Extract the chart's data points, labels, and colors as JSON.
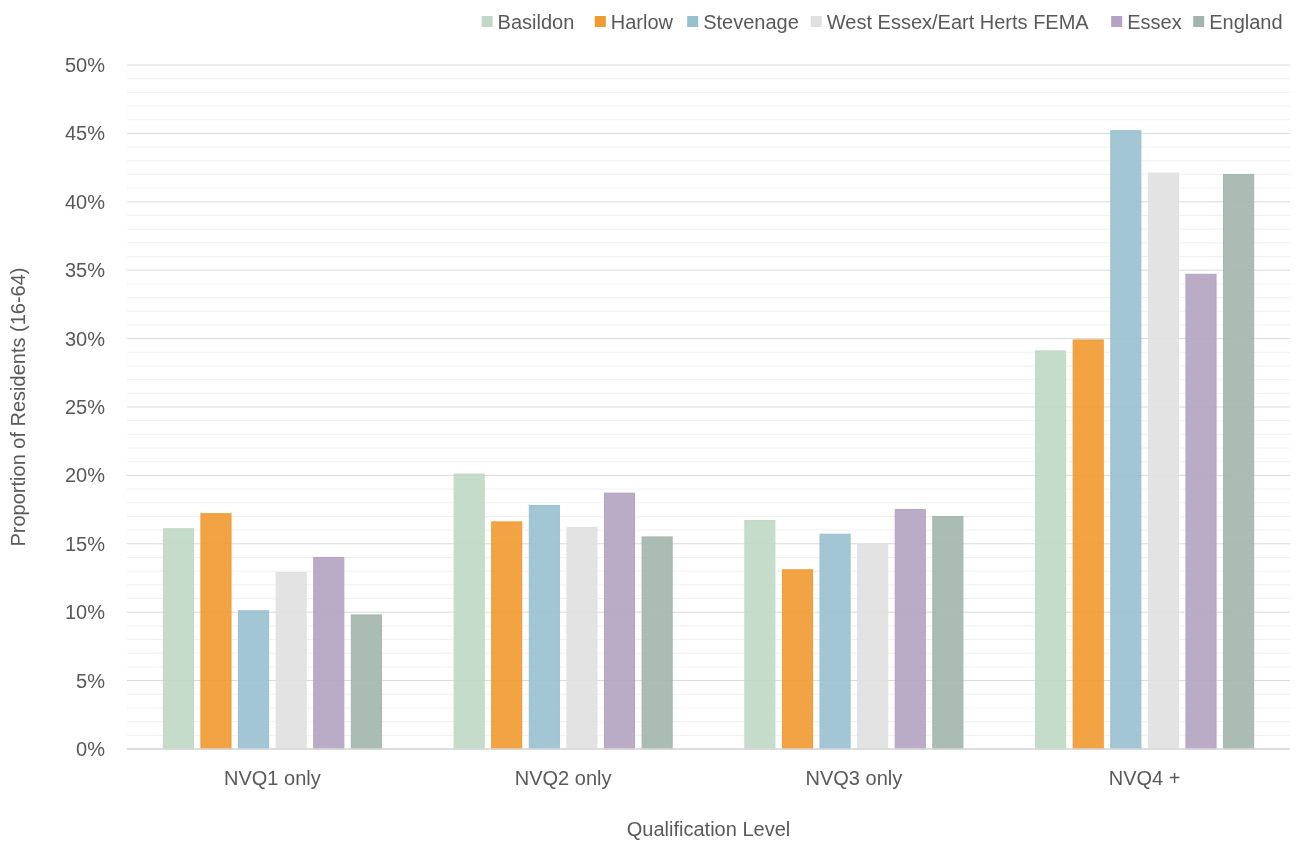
{
  "chart_data": {
    "type": "bar",
    "xlabel": "Qualification Level",
    "ylabel": "Proportion of Residents (16-64)",
    "categories": [
      "NVQ1 only",
      "NVQ2 only",
      "NVQ3 only",
      "NVQ4 +"
    ],
    "series": [
      {
        "name": "Basildon",
        "color": "#c0d8c4",
        "values": [
          16.1,
          20.1,
          16.7,
          29.1
        ]
      },
      {
        "name": "Harlow",
        "color": "#f19a30",
        "values": [
          17.2,
          16.6,
          13.1,
          29.9
        ]
      },
      {
        "name": "Stevenage",
        "color": "#98c0cf",
        "values": [
          10.1,
          17.8,
          15.7,
          45.2
        ]
      },
      {
        "name": "West Essex/Eart Herts FEMA",
        "color": "#e0e0e0",
        "values": [
          12.9,
          16.2,
          15.0,
          42.1
        ]
      },
      {
        "name": "Essex",
        "color": "#b3a2c1",
        "values": [
          14.0,
          18.7,
          17.5,
          34.7
        ]
      },
      {
        "name": "England",
        "color": "#a2b5ac",
        "values": [
          9.8,
          15.5,
          17.0,
          42.0
        ]
      }
    ],
    "ylim": [
      0,
      50
    ],
    "yticks": [
      {
        "value": 0,
        "label": "0%"
      },
      {
        "value": 1,
        "label": null
      },
      {
        "value": 2,
        "label": null
      },
      {
        "value": 3,
        "label": null
      },
      {
        "value": 4,
        "label": null
      },
      {
        "value": 5,
        "label": "5%"
      },
      {
        "value": 6,
        "label": null
      },
      {
        "value": 7,
        "label": null
      },
      {
        "value": 8,
        "label": null
      },
      {
        "value": 9,
        "label": null
      },
      {
        "value": 10,
        "label": "10%"
      },
      {
        "value": 11,
        "label": null
      },
      {
        "value": 12,
        "label": null
      },
      {
        "value": 13,
        "label": null
      },
      {
        "value": 14,
        "label": null
      },
      {
        "value": 15,
        "label": "15%"
      },
      {
        "value": 16,
        "label": null
      },
      {
        "value": 17,
        "label": null
      },
      {
        "value": 18,
        "label": null
      },
      {
        "value": 19,
        "label": null
      },
      {
        "value": 20,
        "label": "20%"
      },
      {
        "value": 21,
        "label": null
      },
      {
        "value": 22,
        "label": null
      },
      {
        "value": 23,
        "label": null
      },
      {
        "value": 24,
        "label": null
      },
      {
        "value": 25,
        "label": "25%"
      },
      {
        "value": 26,
        "label": null
      },
      {
        "value": 27,
        "label": null
      },
      {
        "value": 28,
        "label": null
      },
      {
        "value": 29,
        "label": null
      },
      {
        "value": 30,
        "label": "30%"
      },
      {
        "value": 31,
        "label": null
      },
      {
        "value": 32,
        "label": null
      },
      {
        "value": 33,
        "label": null
      },
      {
        "value": 34,
        "label": null
      },
      {
        "value": 35,
        "label": "35%"
      },
      {
        "value": 36,
        "label": null
      },
      {
        "value": 37,
        "label": null
      },
      {
        "value": 38,
        "label": null
      },
      {
        "value": 39,
        "label": null
      },
      {
        "value": 40,
        "label": "40%"
      },
      {
        "value": 41,
        "label": null
      },
      {
        "value": 42,
        "label": null
      },
      {
        "value": 43,
        "label": null
      },
      {
        "value": 44,
        "label": null
      },
      {
        "value": 45,
        "label": "45%"
      },
      {
        "value": 46,
        "label": null
      },
      {
        "value": 47,
        "label": null
      },
      {
        "value": 48,
        "label": null
      },
      {
        "value": 49,
        "label": null
      },
      {
        "value": 50,
        "label": "50%"
      }
    ],
    "grid": "y",
    "legend": "top right"
  }
}
